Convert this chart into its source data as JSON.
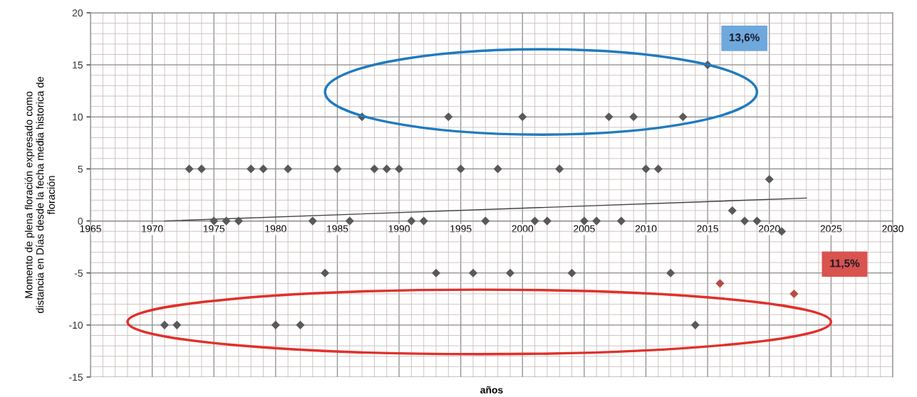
{
  "chart_data": {
    "type": "scatter",
    "xlabel": "años",
    "ylabel": "Momento de plena floración expresado como\ndistancia en Días desde la fecha media historica de\nfloración",
    "xlim": [
      1965,
      2030
    ],
    "xticks": [
      1965,
      1970,
      1975,
      1980,
      1985,
      1990,
      1995,
      2000,
      2005,
      2010,
      2015,
      2020,
      2025,
      2030
    ],
    "ylim": [
      -15,
      20
    ],
    "yticks": [
      -15,
      -10,
      -5,
      0,
      5,
      10,
      15,
      20
    ],
    "grid": true,
    "series": [
      {
        "marker": "diamond",
        "x": [
          1971,
          1972,
          1973,
          1974,
          1975,
          1976,
          1977,
          1978,
          1979,
          1980,
          1981,
          1982,
          1983,
          1984,
          1985,
          1986,
          1987,
          1988,
          1989,
          1990,
          1991,
          1992,
          1993,
          1994,
          1995,
          1996,
          1997,
          1998,
          1999,
          2000,
          2001,
          2002,
          2003,
          2004,
          2005,
          2006,
          2007,
          2008,
          2009,
          2010,
          2011,
          2012,
          2013,
          2014,
          2015,
          2016,
          2017,
          2018,
          2019,
          2020,
          2021,
          2022
        ],
        "values": [
          -10,
          -10,
          5,
          5,
          0,
          0,
          0,
          5,
          5,
          -10,
          5,
          -10,
          0,
          -5,
          5,
          0,
          10,
          5,
          5,
          5,
          0,
          0,
          -5,
          10,
          5,
          -5,
          0,
          5,
          -5,
          10,
          0,
          0,
          5,
          -5,
          0,
          0,
          10,
          0,
          10,
          5,
          5,
          -5,
          10,
          -10,
          15,
          -6,
          1,
          0,
          0,
          4,
          -1,
          -7
        ],
        "colors": [
          "#595959",
          "#595959",
          "#595959",
          "#595959",
          "#595959",
          "#595959",
          "#595959",
          "#595959",
          "#595959",
          "#595959",
          "#595959",
          "#595959",
          "#595959",
          "#595959",
          "#595959",
          "#595959",
          "#595959",
          "#595959",
          "#595959",
          "#595959",
          "#595959",
          "#595959",
          "#595959",
          "#595959",
          "#595959",
          "#595959",
          "#595959",
          "#595959",
          "#595959",
          "#595959",
          "#595959",
          "#595959",
          "#595959",
          "#595959",
          "#595959",
          "#595959",
          "#595959",
          "#595959",
          "#595959",
          "#595959",
          "#595959",
          "#595959",
          "#595959",
          "#595959",
          "#595959",
          "#b94a44",
          "#595959",
          "#595959",
          "#595959",
          "#595959",
          "#595959",
          "#b94a44"
        ]
      },
      {
        "type": "line",
        "x": [
          1971,
          2023
        ],
        "values": [
          0,
          2.2
        ],
        "color": "#404040"
      }
    ],
    "annotations": [
      "13,6%",
      "11,5%"
    ]
  }
}
